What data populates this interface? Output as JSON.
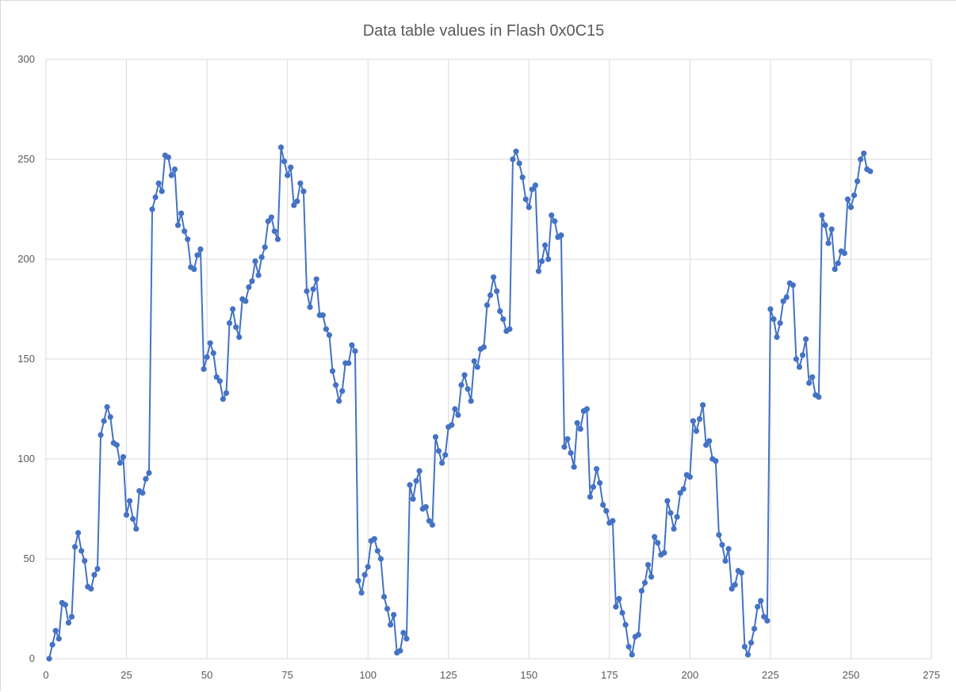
{
  "chart_data": {
    "type": "scatter",
    "title": "Data table values in Flash 0x0C15",
    "xlabel": "",
    "ylabel": "",
    "xlim": [
      0,
      275
    ],
    "ylim": [
      0,
      300
    ],
    "x_ticks": [
      "0",
      "25",
      "50",
      "75",
      "100",
      "125",
      "150",
      "175",
      "200",
      "225",
      "250",
      "275"
    ],
    "y_ticks": [
      "0",
      "50",
      "100",
      "150",
      "200",
      "250",
      "300"
    ],
    "grid": true,
    "legend": "none",
    "series": [
      {
        "color": "#4472c4",
        "values": [
          0,
          7,
          14,
          10,
          28,
          27,
          18,
          21,
          56,
          63,
          54,
          49,
          36,
          35,
          42,
          45,
          112,
          119,
          126,
          121,
          108,
          107,
          98,
          101,
          72,
          79,
          70,
          65,
          84,
          83,
          90,
          93,
          225,
          231,
          238,
          234,
          252,
          251,
          242,
          245,
          217,
          223,
          214,
          210,
          196,
          195,
          202,
          205,
          145,
          151,
          158,
          153,
          141,
          139,
          130,
          133,
          168,
          175,
          166,
          161,
          180,
          179,
          186,
          189,
          199,
          192,
          201,
          206,
          219,
          221,
          214,
          210,
          256,
          249,
          242,
          246,
          227,
          229,
          238,
          234,
          184,
          176,
          185,
          190,
          172,
          172,
          165,
          162,
          144,
          137,
          129,
          134,
          148,
          148,
          157,
          154,
          39,
          33,
          42,
          46,
          59,
          60,
          54,
          50,
          31,
          25,
          17,
          22,
          3,
          4,
          13,
          10,
          87,
          80,
          89,
          94,
          75,
          76,
          69,
          67,
          111,
          104,
          98,
          102,
          116,
          117,
          125,
          122,
          137,
          142,
          135,
          129,
          149,
          146,
          155,
          156,
          177,
          182,
          191,
          184,
          174,
          170,
          164,
          165,
          250,
          254,
          248,
          241,
          230,
          226,
          235,
          237,
          194,
          199,
          207,
          200,
          222,
          219,
          211,
          212,
          106,
          110,
          103,
          96,
          118,
          115,
          124,
          125,
          81,
          86,
          95,
          88,
          77,
          74,
          68,
          69,
          26,
          30,
          23,
          17,
          6,
          2,
          11,
          12,
          34,
          38,
          47,
          41,
          61,
          58,
          52,
          53,
          79,
          73,
          65,
          71,
          83,
          85,
          92,
          91,
          119,
          114,
          120,
          127,
          107,
          109,
          100,
          99,
          62,
          57,
          49,
          55,
          35,
          37,
          44,
          43,
          6,
          2,
          8,
          15,
          26,
          29,
          21,
          19,
          175,
          170,
          161,
          168,
          179,
          181,
          188,
          187,
          150,
          146,
          152,
          160,
          138,
          141,
          132,
          131,
          222,
          217,
          208,
          215,
          195,
          198,
          204,
          203,
          230,
          226,
          232,
          239,
          250,
          253,
          245,
          244
        ]
      }
    ]
  }
}
